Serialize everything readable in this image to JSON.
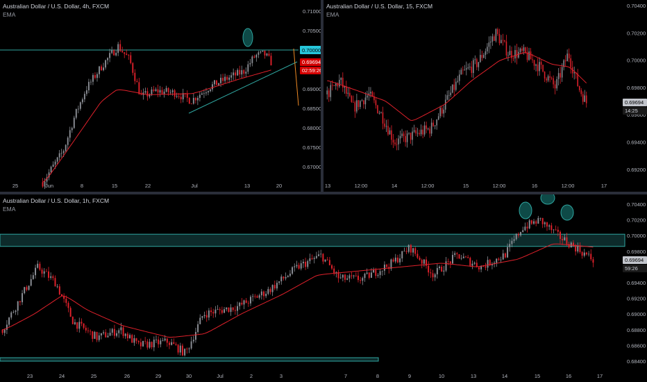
{
  "colors": {
    "background": "#000000",
    "up_candle": "#8c8f96",
    "down_candle": "#e0212b",
    "ema": "#e0212b",
    "zone": "#2fa6a0",
    "zone_fill": "#0d2b2b",
    "text": "#b2b5be",
    "price_tag_cyan": "#26c6da",
    "price_tag_red": "#d50000",
    "countdown_bg": "#c2c5cc",
    "forecast_arrow": "#f08a24"
  },
  "panes": {
    "top_left": {
      "title": "Australian Dollar / U.S. Dollar, 4h, FXCM",
      "indicator": "EMA",
      "y_labels": [
        "0.71000",
        "0.70500",
        "0.70000",
        "0.69500",
        "0.69000",
        "0.68500",
        "0.68000",
        "0.67500",
        "0.67000"
      ],
      "x_labels": [
        "25",
        "Jun",
        "8",
        "15",
        "22",
        "Jul",
        "13",
        "20"
      ],
      "level_tag": "0.70000",
      "price_tag": "0.69694",
      "countdown": "02:59:26",
      "icons": [
        "ellipse-marker-icon",
        "trendline-icon",
        "forecast-arrow-icon"
      ]
    },
    "top_right": {
      "title": "Australian Dollar / U.S. Dollar, 15, FXCM",
      "indicator": "EMA",
      "y_labels": [
        "0.70400",
        "0.70200",
        "0.70000",
        "0.69800",
        "0.69600",
        "0.69400",
        "0.69200"
      ],
      "x_labels": [
        "13",
        "12:00",
        "14",
        "12:00",
        "15",
        "12:00",
        "16",
        "12:00",
        "17"
      ],
      "price_tag": "0.69694",
      "countdown": "14:25"
    },
    "bottom": {
      "title": "Australian Dollar / U.S. Dollar, 1h, FXCM",
      "indicator": "EMA",
      "y_labels": [
        "0.70400",
        "0.70200",
        "0.70000",
        "0.69800",
        "0.69600",
        "0.69400",
        "0.69200",
        "0.69000",
        "0.68800",
        "0.68600",
        "0.68400"
      ],
      "x_labels": [
        "23",
        "24",
        "25",
        "26",
        "29",
        "30",
        "Jul",
        "2",
        "3",
        "7",
        "8",
        "9",
        "10",
        "13",
        "14",
        "15",
        "16",
        "17"
      ],
      "price_tag": "0.69694",
      "countdown": "59:26",
      "icons": [
        "ellipse-marker-icon",
        "ellipse-marker-icon",
        "ellipse-marker-icon"
      ]
    }
  }
}
